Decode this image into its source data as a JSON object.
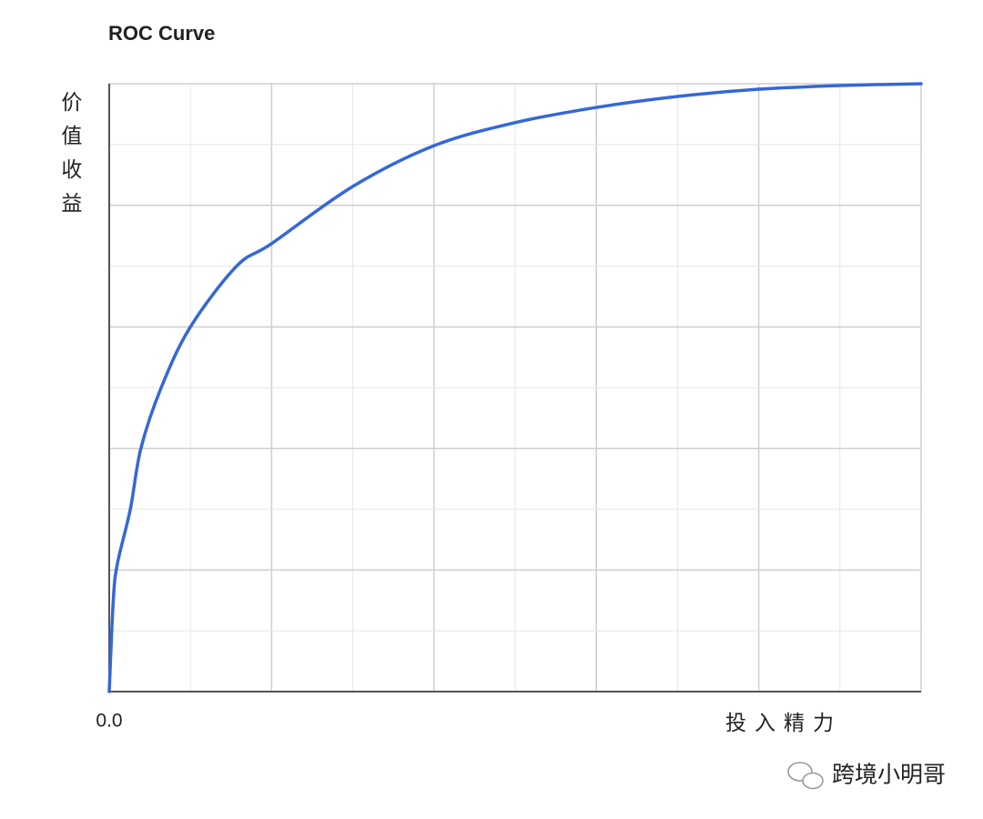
{
  "chart_data": {
    "type": "line",
    "title": "ROC Curve",
    "y_label": "价值收益",
    "x_label": "投入精力",
    "x": [
      0,
      0.005,
      0.01,
      0.026,
      0.039,
      0.064,
      0.1,
      0.157,
      0.2,
      0.3,
      0.4,
      0.5,
      0.6,
      0.7,
      0.8,
      0.9,
      1.0
    ],
    "series": [
      {
        "color": "#3468d8",
        "values": [
          0,
          0.15,
          0.21,
          0.3,
          0.4,
          0.5,
          0.6,
          0.7,
          0.737,
          0.831,
          0.898,
          0.936,
          0.961,
          0.979,
          0.991,
          0.997,
          1.0
        ]
      }
    ],
    "xlim": [
      0,
      1
    ],
    "ylim": [
      0,
      1
    ],
    "xticks": [
      {
        "value": 0,
        "label": "0.0"
      }
    ],
    "grid": true,
    "xgrid": [
      0.1,
      0.2,
      0.3,
      0.4,
      0.5,
      0.6,
      0.7,
      0.8,
      0.9,
      1.0
    ],
    "ygrid": [
      0.1,
      0.2,
      0.3,
      0.4,
      0.5,
      0.6,
      0.7,
      0.8,
      0.9,
      1.0
    ],
    "watermark": "跨境小明哥"
  }
}
